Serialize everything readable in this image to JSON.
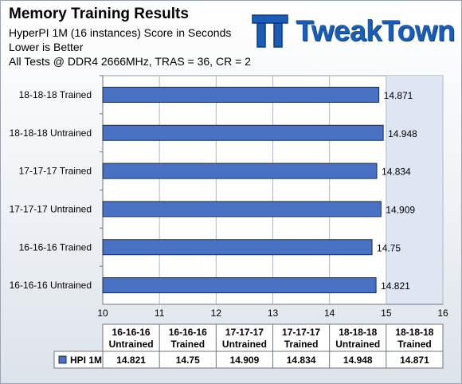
{
  "header": {
    "title": "Memory Training  Results",
    "subtitle_1": "HyperPI 1M (16 instances) Score in Seconds",
    "subtitle_2": "Lower is Better",
    "subtitle_3": "All Tests @ DDR4 2666MHz,  TRAS = 36,  CR = 2"
  },
  "logo": {
    "text": "TweakTown",
    "icon": "tweaktown-tt-logo-icon"
  },
  "colors": {
    "bar": "#4a72c4",
    "bar_edge": "#1c2a4a",
    "plot_bg": "#dde6f2",
    "grid": "#aeb8c6"
  },
  "chart_data": {
    "type": "bar",
    "orientation": "horizontal",
    "title": "",
    "xlabel": "",
    "ylabel": "",
    "categories": [
      "16-16-16 Untrained",
      "16-16-16 Trained",
      "17-17-17 Untrained",
      "17-17-17 Trained",
      "18-18-18 Untrained",
      "18-18-18 Trained"
    ],
    "series": [
      {
        "name": "HPI 1M",
        "values": [
          14.821,
          14.75,
          14.909,
          14.834,
          14.948,
          14.871
        ]
      }
    ],
    "value_labels": [
      "14.821",
      "14.75",
      "14.909",
      "14.834",
      "14.948",
      "14.871"
    ],
    "xlim": [
      10,
      16
    ],
    "xticks": [
      10,
      11,
      12,
      13,
      14,
      15,
      16
    ],
    "grid": true,
    "legend": "bottom-left (data table)",
    "table_columns": [
      {
        "line1": "16-16-16",
        "line2": "Untrained"
      },
      {
        "line1": "16-16-16",
        "line2": "Trained"
      },
      {
        "line1": "17-17-17",
        "line2": "Untrained"
      },
      {
        "line1": "17-17-17",
        "line2": "Trained"
      },
      {
        "line1": "18-18-18",
        "line2": "Untrained"
      },
      {
        "line1": "18-18-18",
        "line2": "Trained"
      }
    ]
  }
}
